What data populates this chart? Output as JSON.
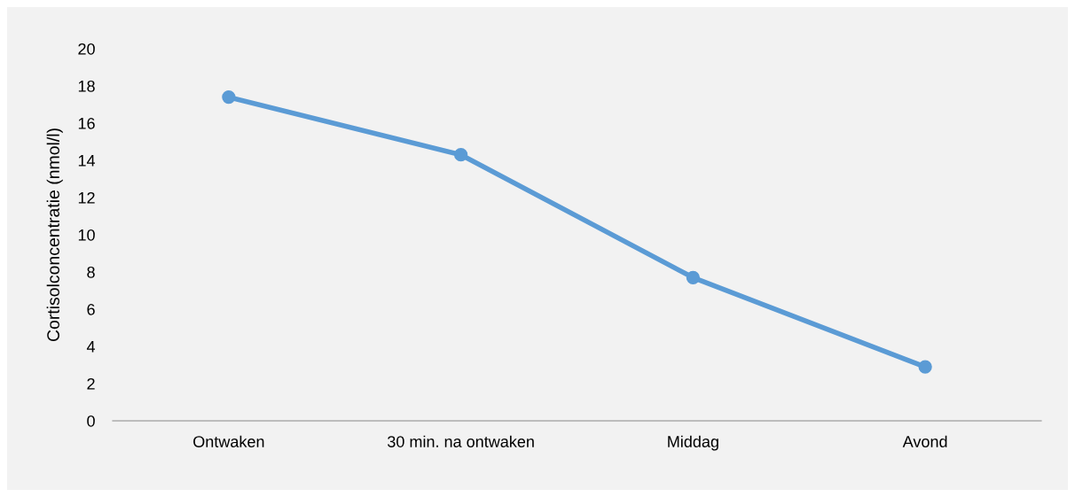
{
  "chart_data": {
    "type": "line",
    "ylabel": "Cortisolconcentratie (nmol/l)",
    "categories": [
      "Ontwaken",
      "30 min. na ontwaken",
      "Middag",
      "Avond"
    ],
    "series": [
      {
        "color": "#5b9bd5",
        "values": [
          17.4,
          14.3,
          7.7,
          2.9
        ]
      }
    ],
    "ylim": [
      0,
      20
    ],
    "yticks": [
      0,
      2,
      4,
      6,
      8,
      10,
      12,
      14,
      16,
      18,
      20
    ],
    "grid": false,
    "legend": false,
    "marker": "circle",
    "line_style": "solid"
  }
}
